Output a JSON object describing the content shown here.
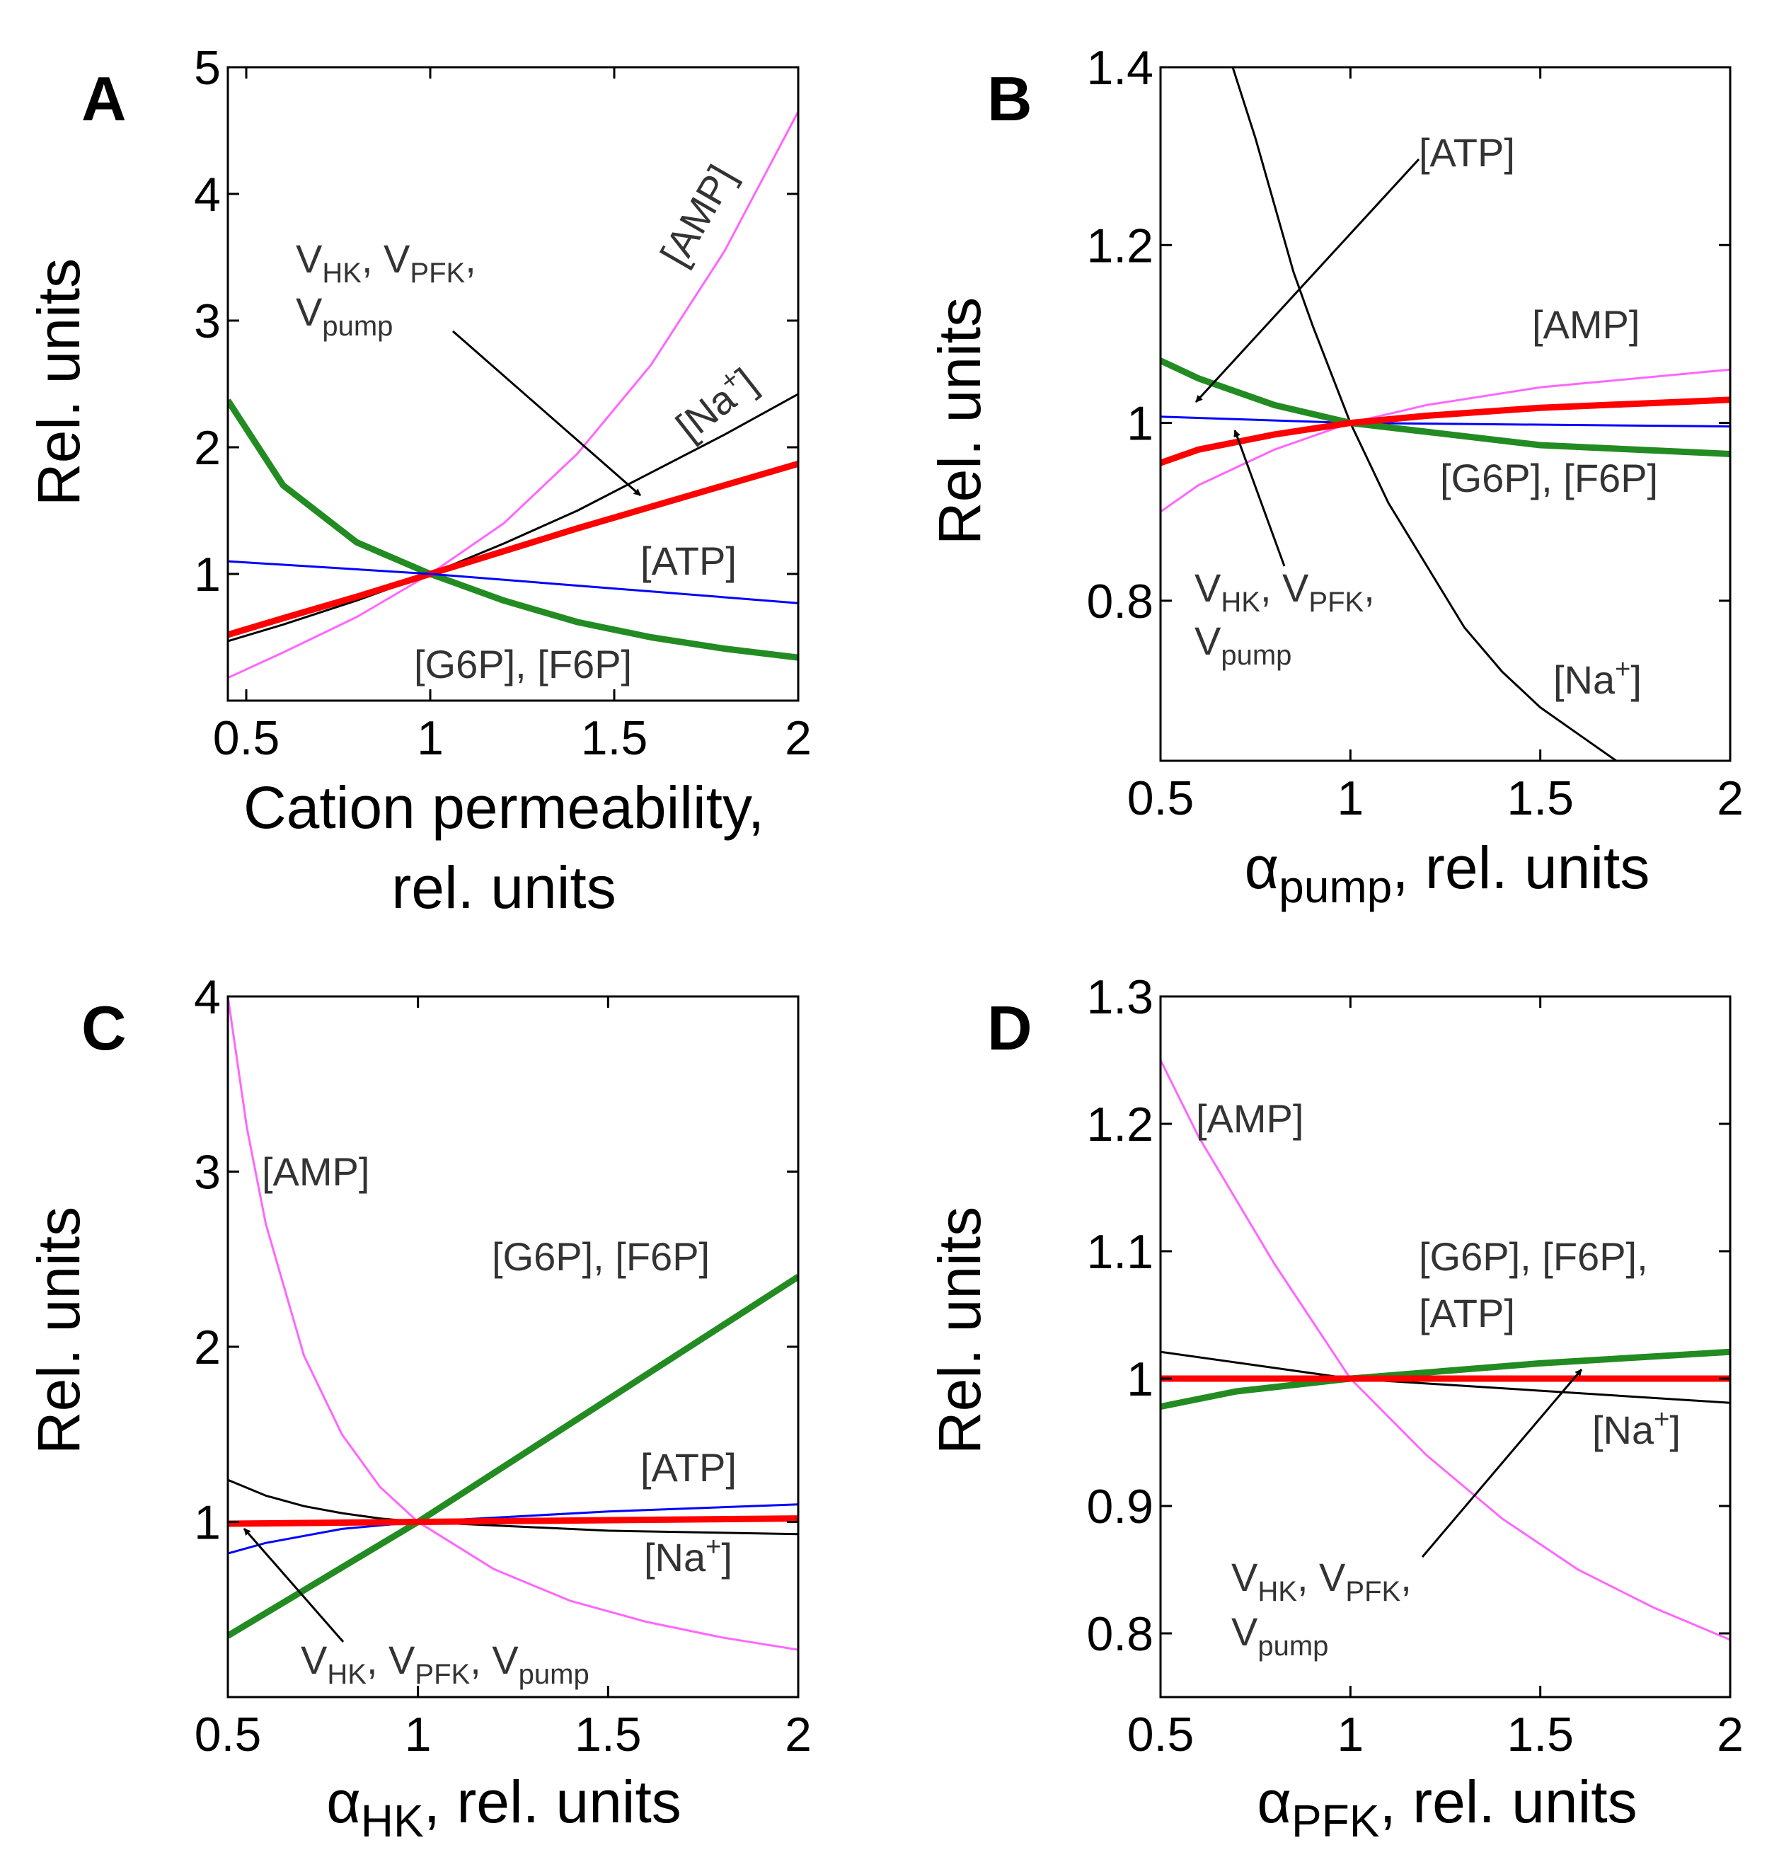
{
  "chart_data": [
    {
      "type": "line",
      "panel_label": "A",
      "xlabel_lines": [
        "Cation permeability,",
        "rel. units"
      ],
      "ylabel": "Rel. units",
      "xlim": [
        0.45,
        2.0
      ],
      "ylim": [
        0.0,
        5.0
      ],
      "xticks": [
        0.5,
        1,
        1.5,
        2
      ],
      "xtick_labels": [
        "0.5",
        "1",
        "1.5",
        "2"
      ],
      "yticks": [
        1,
        2,
        3,
        4,
        5
      ],
      "ytick_labels": [
        "1",
        "2",
        "3",
        "4",
        "5"
      ],
      "series": [
        {
          "name": "[G6P], [F6P]",
          "color": "#228b22",
          "lw": 9,
          "x": [
            0.45,
            0.6,
            0.8,
            1.0,
            1.2,
            1.4,
            1.6,
            1.8,
            2.0
          ],
          "y": [
            2.37,
            1.7,
            1.25,
            1.0,
            0.79,
            0.62,
            0.5,
            0.41,
            0.34
          ]
        },
        {
          "name": "[AMP]",
          "color": "#ff66ff",
          "lw": 3,
          "x": [
            0.45,
            0.6,
            0.8,
            1.0,
            1.2,
            1.4,
            1.6,
            1.8,
            2.0
          ],
          "y": [
            0.18,
            0.38,
            0.66,
            1.0,
            1.4,
            1.95,
            2.65,
            3.55,
            4.65
          ]
        },
        {
          "name": "[Na+]",
          "color": "#000000",
          "lw": 3,
          "x": [
            0.45,
            0.6,
            0.8,
            1.0,
            1.2,
            1.4,
            1.6,
            1.8,
            2.0
          ],
          "y": [
            0.47,
            0.6,
            0.79,
            1.0,
            1.24,
            1.5,
            1.8,
            2.1,
            2.42
          ]
        },
        {
          "name": "VHK, VPFK, Vpump",
          "color": "#ff0000",
          "lw": 9,
          "x": [
            0.45,
            0.6,
            0.8,
            1.0,
            1.2,
            1.4,
            1.6,
            1.8,
            2.0
          ],
          "y": [
            0.52,
            0.65,
            0.82,
            1.0,
            1.18,
            1.36,
            1.53,
            1.7,
            1.87
          ]
        },
        {
          "name": "[ATP]",
          "color": "#0000ff",
          "lw": 3,
          "x": [
            0.45,
            1.0,
            2.0
          ],
          "y": [
            1.1,
            1.0,
            0.77
          ]
        }
      ]
    },
    {
      "type": "line",
      "panel_label": "B",
      "xlabel": "αpump, rel. units",
      "ylabel": "Rel. units",
      "xlim": [
        0.5,
        2.0
      ],
      "ylim": [
        0.62,
        1.4
      ],
      "xticks": [
        0.5,
        1,
        1.5,
        2
      ],
      "xtick_labels": [
        "0.5",
        "1",
        "1.5",
        "2"
      ],
      "yticks": [
        0.8,
        1.0,
        1.2,
        1.4
      ],
      "ytick_labels": [
        "0.8",
        "1",
        "1.2",
        "1.4"
      ],
      "series": [
        {
          "name": "[Na+]",
          "color": "#000000",
          "lw": 3,
          "x": [
            0.69,
            0.75,
            0.85,
            0.9,
            1.0,
            1.1,
            1.2,
            1.3,
            1.4,
            1.5,
            1.6,
            1.7
          ],
          "y": [
            1.4,
            1.32,
            1.17,
            1.11,
            1.0,
            0.91,
            0.84,
            0.77,
            0.72,
            0.68,
            0.65,
            0.62
          ]
        },
        {
          "name": "[AMP]",
          "color": "#ff66ff",
          "lw": 3,
          "x": [
            0.5,
            0.6,
            0.8,
            1.0,
            1.2,
            1.5,
            2.0
          ],
          "y": [
            0.9,
            0.93,
            0.97,
            1.0,
            1.02,
            1.04,
            1.06
          ]
        },
        {
          "name": "[ATP]",
          "color": "#0000ff",
          "lw": 3,
          "x": [
            0.5,
            1.0,
            2.0
          ],
          "y": [
            1.007,
            1.0,
            0.996
          ]
        },
        {
          "name": "[G6P], [F6P]",
          "color": "#228b22",
          "lw": 9,
          "x": [
            0.5,
            0.6,
            0.8,
            1.0,
            1.2,
            1.5,
            2.0
          ],
          "y": [
            1.07,
            1.05,
            1.02,
            1.0,
            0.99,
            0.975,
            0.965
          ]
        },
        {
          "name": "VHK, VPFK, Vpump",
          "color": "#ff0000",
          "lw": 9,
          "x": [
            0.5,
            0.6,
            0.8,
            1.0,
            1.2,
            1.5,
            2.0
          ],
          "y": [
            0.955,
            0.97,
            0.987,
            1.0,
            1.008,
            1.017,
            1.026
          ]
        }
      ]
    },
    {
      "type": "line",
      "panel_label": "C",
      "xlabel": "αHK, rel. units",
      "ylabel": "Rel. units",
      "xlim": [
        0.5,
        2.0
      ],
      "ylim": [
        0.0,
        4.0
      ],
      "xticks": [
        0.5,
        1,
        1.5,
        2
      ],
      "xtick_labels": [
        "0.5",
        "1",
        "1.5",
        "2"
      ],
      "yticks": [
        1,
        2,
        3,
        4
      ],
      "ytick_labels": [
        "1",
        "2",
        "3",
        "4"
      ],
      "series": [
        {
          "name": "[AMP]",
          "color": "#ff66ff",
          "lw": 3,
          "x": [
            0.5,
            0.55,
            0.6,
            0.7,
            0.8,
            0.9,
            1.0,
            1.2,
            1.4,
            1.6,
            1.8,
            2.0
          ],
          "y": [
            4.0,
            3.25,
            2.7,
            1.95,
            1.5,
            1.2,
            1.0,
            0.73,
            0.55,
            0.43,
            0.34,
            0.27
          ]
        },
        {
          "name": "[G6P], [F6P]",
          "color": "#228b22",
          "lw": 9,
          "x": [
            0.5,
            1.0,
            2.0
          ],
          "y": [
            0.35,
            1.0,
            2.4
          ]
        },
        {
          "name": "[Na+]",
          "color": "#000000",
          "lw": 3,
          "x": [
            0.5,
            0.6,
            0.7,
            0.8,
            0.9,
            1.0,
            1.5,
            2.0
          ],
          "y": [
            1.24,
            1.15,
            1.09,
            1.05,
            1.02,
            1.0,
            0.95,
            0.93
          ]
        },
        {
          "name": "[ATP]",
          "color": "#0000ff",
          "lw": 3,
          "x": [
            0.5,
            0.6,
            0.8,
            1.0,
            1.5,
            2.0
          ],
          "y": [
            0.82,
            0.88,
            0.96,
            1.0,
            1.06,
            1.1
          ]
        },
        {
          "name": "VHK, VPFK, Vpump",
          "color": "#ff0000",
          "lw": 9,
          "x": [
            0.5,
            1.0,
            2.0
          ],
          "y": [
            0.99,
            1.0,
            1.02
          ]
        }
      ]
    },
    {
      "type": "line",
      "panel_label": "D",
      "xlabel": "αPFK, rel. units",
      "ylabel": "Rel. units",
      "xlim": [
        0.5,
        2.0
      ],
      "ylim": [
        0.75,
        1.3
      ],
      "xticks": [
        0.5,
        1,
        1.5,
        2
      ],
      "xtick_labels": [
        "0.5",
        "1",
        "1.5",
        "2"
      ],
      "yticks": [
        0.8,
        0.9,
        1.0,
        1.1,
        1.2,
        1.3
      ],
      "ytick_labels": [
        "0.8",
        "0.9",
        "1",
        "1.1",
        "1.2",
        "1.3"
      ],
      "series": [
        {
          "name": "[AMP]",
          "color": "#ff66ff",
          "lw": 3,
          "x": [
            0.5,
            0.6,
            0.7,
            0.8,
            0.9,
            1.0,
            1.2,
            1.4,
            1.6,
            1.8,
            2.0
          ],
          "y": [
            1.25,
            1.19,
            1.14,
            1.09,
            1.045,
            1.0,
            0.94,
            0.89,
            0.85,
            0.82,
            0.795
          ]
        },
        {
          "name": "[Na+]",
          "color": "#000000",
          "lw": 3,
          "x": [
            0.5,
            1.0,
            2.0
          ],
          "y": [
            1.021,
            1.0,
            0.981
          ]
        },
        {
          "name": "[G6P], [F6P], [ATP]",
          "color": "#228b22",
          "lw": 9,
          "x": [
            0.5,
            0.7,
            1.0,
            1.5,
            2.0
          ],
          "y": [
            0.978,
            0.99,
            1.0,
            1.012,
            1.021
          ]
        },
        {
          "name": "VHK, VPFK, Vpump",
          "color": "#ff0000",
          "lw": 9,
          "x": [
            0.5,
            2.0
          ],
          "y": [
            1.0,
            1.0
          ]
        }
      ]
    }
  ],
  "labels": {
    "A": {
      "amp": {
        "text": "[AMP]",
        "rot": -60
      },
      "na": {
        "base": "[Na",
        "sup": "+",
        "end": "]",
        "rot": -38
      },
      "atp": "[ATP]",
      "g6p": "[G6P], [F6P]",
      "v_line1": {
        "p1": "V",
        "s1": "HK",
        "p2": ", V",
        "s2": "PFK",
        "p3": ","
      },
      "v_line2": {
        "p1": "V",
        "s1": "pump"
      }
    },
    "B": {
      "atp": "[ATP]",
      "amp": "[AMP]",
      "g6p": "[G6P], [F6P]",
      "na": {
        "base": "[Na",
        "sup": "+",
        "end": "]"
      },
      "v_line1": {
        "p1": "V",
        "s1": "HK",
        "p2": ", V",
        "s2": "PFK",
        "p3": ","
      },
      "v_line2": {
        "p1": "V",
        "s1": "pump"
      }
    },
    "C": {
      "amp": "[AMP]",
      "g6p": "[G6P], [F6P]",
      "atp": "[ATP]",
      "na": {
        "base": "[Na",
        "sup": "+",
        "end": "]"
      },
      "v_line": {
        "p1": "V",
        "s1": "HK",
        "p2": ", V",
        "s2": "PFK",
        "p3": ", V",
        "s3": "pump"
      }
    },
    "D": {
      "amp": "[AMP]",
      "g6p_line1": "[G6P], [F6P],",
      "g6p_line2": "[ATP]",
      "na": {
        "base": "[Na",
        "sup": "+",
        "end": "]"
      },
      "v_line1": {
        "p1": "V",
        "s1": "HK",
        "p2": ", V",
        "s2": "PFK",
        "p3": ","
      },
      "v_line2": {
        "p1": "V",
        "s1": "pump"
      }
    }
  },
  "xlabel_parts": {
    "B": {
      "alpha": "α",
      "sub": "pump",
      "rest": ", rel. units"
    },
    "C": {
      "alpha": "α",
      "sub": "HK",
      "rest": ", rel. units"
    },
    "D": {
      "alpha": "α",
      "sub": "PFK",
      "rest": ", rel. units"
    }
  },
  "colors": {
    "g6p": "#228b22",
    "amp": "#ff66ff",
    "na": "#000000",
    "v": "#ff0000",
    "atp": "#0000ff"
  }
}
